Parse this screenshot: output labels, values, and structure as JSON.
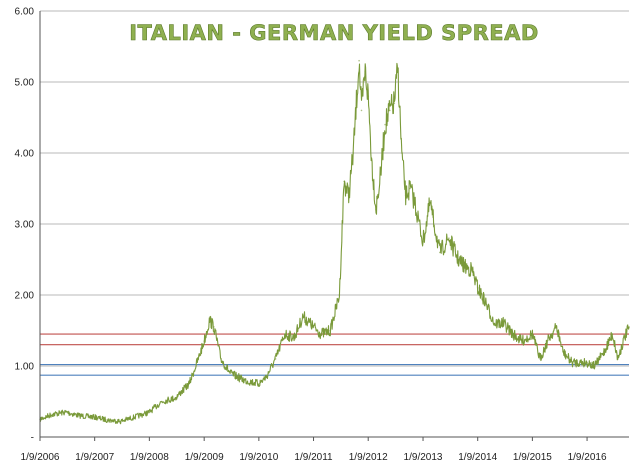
{
  "chart_data": {
    "type": "line",
    "title": "ITALIAN - GERMAN YIELD SPREAD",
    "xlabel": "",
    "ylabel": "",
    "ylim": [
      0,
      6
    ],
    "grid": true,
    "y_tick_labels": [
      "-",
      "1.00",
      "2.00",
      "3.00",
      "4.00",
      "5.00",
      "6.00"
    ],
    "x_tick_labels": [
      "1/9/2006",
      "1/9/2007",
      "1/9/2008",
      "1/9/2009",
      "1/9/2010",
      "1/9/2011",
      "1/9/2012",
      "1/9/2013",
      "1/9/2014",
      "1/9/2015",
      "1/9/2016"
    ],
    "x_start": "2006-01-09",
    "x_end": "2016-10-15",
    "colors": {
      "line": "#7a9a3a",
      "upper_band": "#c0504d",
      "lower_band": "#4f81bd",
      "grid": "#a0a0a0"
    },
    "reference_lines": [
      {
        "y": 1.45,
        "color": "#c0504d"
      },
      {
        "y": 1.3,
        "color": "#c0504d"
      },
      {
        "y": 1.02,
        "color": "#4f81bd"
      },
      {
        "y": 0.87,
        "color": "#4f81bd"
      }
    ],
    "series": [
      {
        "name": "",
        "x": [
          "2006-01-09",
          "2006-04-01",
          "2006-07-01",
          "2006-10-01",
          "2007-01-09",
          "2007-04-01",
          "2007-07-01",
          "2007-10-01",
          "2008-01-09",
          "2008-04-01",
          "2008-07-01",
          "2008-10-01",
          "2008-12-01",
          "2009-01-09",
          "2009-02-15",
          "2009-03-15",
          "2009-05-01",
          "2009-07-01",
          "2009-10-01",
          "2010-01-09",
          "2010-03-01",
          "2010-05-01",
          "2010-07-01",
          "2010-09-01",
          "2010-11-01",
          "2011-01-09",
          "2011-03-01",
          "2011-05-01",
          "2011-07-01",
          "2011-08-01",
          "2011-09-01",
          "2011-10-01",
          "2011-11-09",
          "2011-11-25",
          "2011-12-20",
          "2012-01-09",
          "2012-02-01",
          "2012-03-01",
          "2012-04-01",
          "2012-05-01",
          "2012-06-01",
          "2012-07-01",
          "2012-07-24",
          "2012-08-20",
          "2012-09-15",
          "2012-10-15",
          "2012-11-15",
          "2013-01-09",
          "2013-02-25",
          "2013-03-15",
          "2013-05-01",
          "2013-07-01",
          "2013-09-01",
          "2013-10-15",
          "2013-12-01",
          "2014-01-09",
          "2014-03-01",
          "2014-05-01",
          "2014-07-01",
          "2014-09-01",
          "2014-11-01",
          "2015-01-09",
          "2015-03-01",
          "2015-05-01",
          "2015-06-20",
          "2015-08-01",
          "2015-10-01",
          "2015-12-01",
          "2016-01-09",
          "2016-03-01",
          "2016-05-01",
          "2016-06-27",
          "2016-08-01",
          "2016-09-15",
          "2016-10-15"
        ],
        "y": [
          0.25,
          0.32,
          0.35,
          0.3,
          0.28,
          0.24,
          0.22,
          0.28,
          0.35,
          0.5,
          0.55,
          0.75,
          1.1,
          1.35,
          1.65,
          1.55,
          1.1,
          0.9,
          0.8,
          0.75,
          0.85,
          1.1,
          1.45,
          1.4,
          1.7,
          1.55,
          1.45,
          1.5,
          2.0,
          3.6,
          3.4,
          4.0,
          5.3,
          4.6,
          5.15,
          4.8,
          3.9,
          3.2,
          3.7,
          4.4,
          4.6,
          4.7,
          5.2,
          4.0,
          3.4,
          3.5,
          3.3,
          2.75,
          3.3,
          3.1,
          2.6,
          2.8,
          2.5,
          2.4,
          2.35,
          2.1,
          1.9,
          1.6,
          1.6,
          1.45,
          1.35,
          1.45,
          1.1,
          1.4,
          1.55,
          1.2,
          1.05,
          1.05,
          1.05,
          1.0,
          1.2,
          1.45,
          1.1,
          1.4,
          1.55
        ]
      }
    ]
  }
}
